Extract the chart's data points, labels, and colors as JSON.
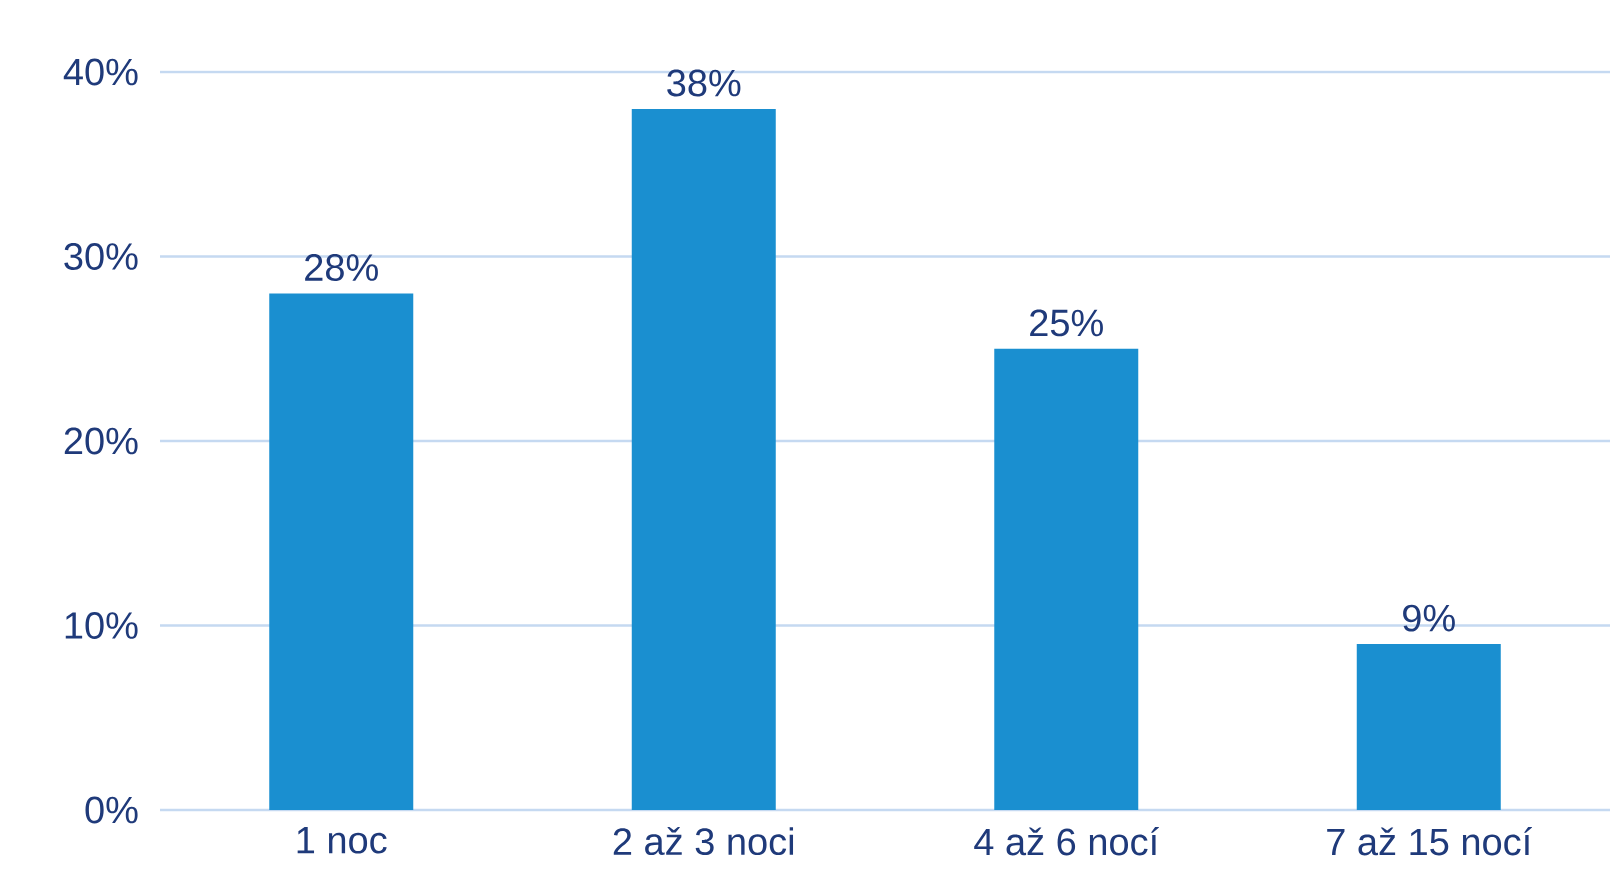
{
  "chart_data": {
    "type": "bar",
    "categories": [
      "1 noc",
      "2 až 3 noci",
      "4 až 6 nocí",
      "7 až 15 nocí"
    ],
    "values": [
      28,
      38,
      25,
      9
    ],
    "value_labels": [
      "28%",
      "38%",
      "25%",
      "9%"
    ],
    "color": "#1a8fd0",
    "ylim": [
      0,
      40
    ],
    "yticks": [
      {
        "value": 0,
        "label": "0%"
      },
      {
        "value": 10,
        "label": "10%"
      },
      {
        "value": 20,
        "label": "20%"
      },
      {
        "value": 30,
        "label": "30%"
      },
      {
        "value": 40,
        "label": "40%"
      }
    ],
    "grid": "y"
  }
}
